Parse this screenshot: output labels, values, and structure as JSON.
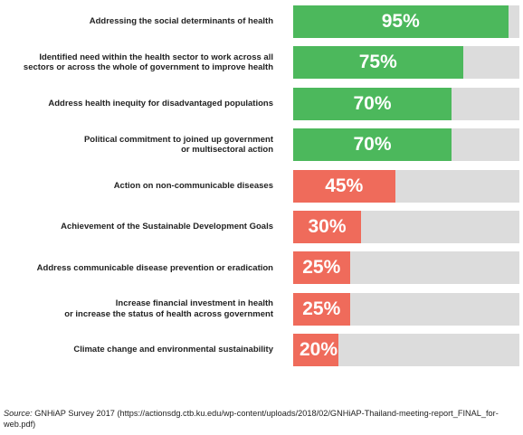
{
  "chart_data": {
    "type": "bar",
    "orientation": "horizontal",
    "categories": [
      "Addressing  the social determinants of health",
      "Identified need within the health sector to work across all\nsectors or across the whole of government to improve health",
      "Address health inequity for disadvantaged populations",
      "Political commitment to joined up government\nor multisectoral action",
      "Action on non-communicable diseases",
      "Achievement of the Sustainable Development Goals",
      "Address communicable disease prevention or eradication",
      "Increase financial investment in health\nor increase the status of health across government",
      "Climate change and environmental sustainability"
    ],
    "values": [
      95,
      75,
      70,
      70,
      45,
      30,
      25,
      25,
      20
    ],
    "value_labels": [
      "95%",
      "75%",
      "70%",
      "70%",
      "45%",
      "30%",
      "25%",
      "25%",
      "20%"
    ],
    "xlim": [
      0,
      100
    ],
    "colors": [
      "#4cb85c",
      "#4cb85c",
      "#4cb85c",
      "#4cb85c",
      "#ef6b5b",
      "#ef6b5b",
      "#ef6b5b",
      "#ef6b5b",
      "#ef6b5b"
    ],
    "track_color": "#dcdcdc",
    "grid": false,
    "legend": "none"
  },
  "source": {
    "label": "Source:",
    "text": " GNHiAP Survey 2017 (https://actionsdg.ctb.ku.edu/wp-content/uploads/2018/02/GNHiAP-Thailand-meeting-report_FINAL_for-web.pdf)"
  }
}
